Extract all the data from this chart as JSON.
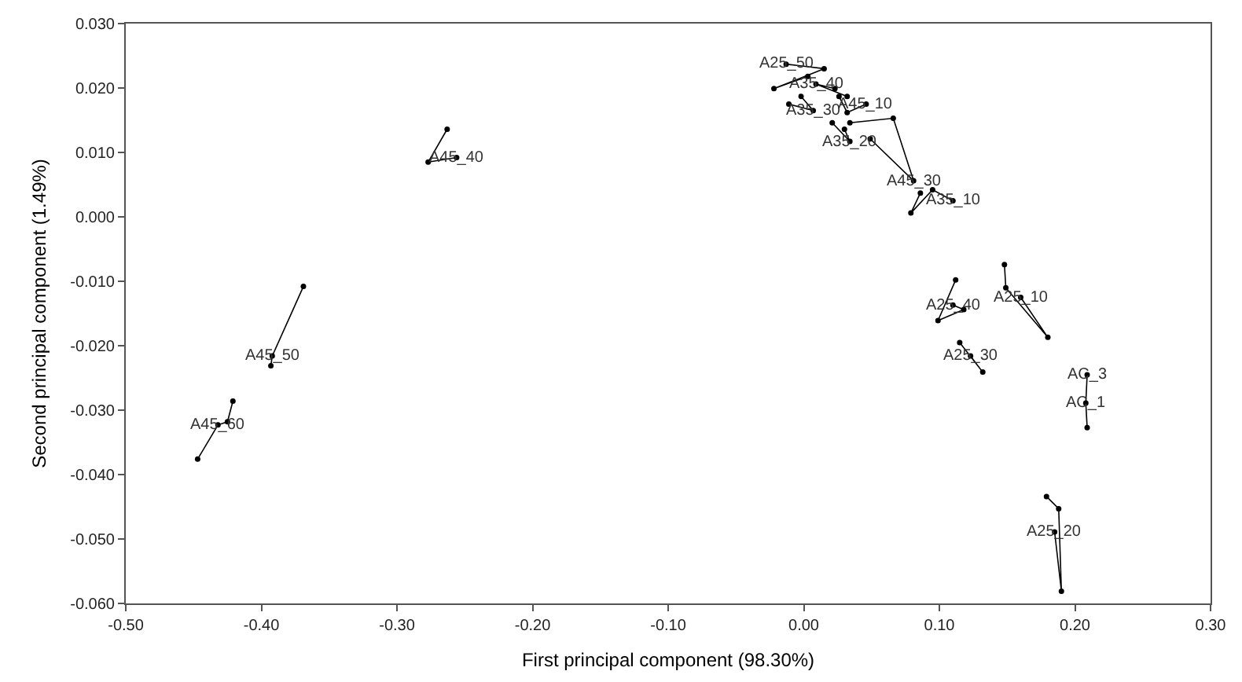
{
  "chart_data": {
    "type": "scatter",
    "xlabel": "First principal component (98.30%)",
    "ylabel": "Second principal component (1.49%)",
    "xlim": [
      -0.5,
      0.3
    ],
    "xticks": [
      {
        "value": -0.5,
        "label": "-0.50"
      },
      {
        "value": -0.4,
        "label": "-0.40"
      },
      {
        "value": -0.3,
        "label": "-0.30"
      },
      {
        "value": -0.2,
        "label": "-0.20"
      },
      {
        "value": -0.1,
        "label": "-0.10"
      },
      {
        "value": 0,
        "label": "0.00"
      },
      {
        "value": 0.1,
        "label": "0.10"
      },
      {
        "value": 0.2,
        "label": "0.20"
      },
      {
        "value": 0.3,
        "label": "0.30"
      }
    ],
    "ylim": [
      -0.06,
      0.03
    ],
    "yticks": [
      {
        "value": 0.03,
        "label": "0.030"
      },
      {
        "value": 0.02,
        "label": "0.020"
      },
      {
        "value": 0.01,
        "label": "0.010"
      },
      {
        "value": 0,
        "label": "0.000"
      },
      {
        "value": -0.01,
        "label": "-0.010"
      },
      {
        "value": -0.02,
        "label": "-0.020"
      },
      {
        "value": -0.03,
        "label": "-0.030"
      },
      {
        "value": -0.04,
        "label": "-0.040"
      },
      {
        "value": -0.05,
        "label": "-0.050"
      },
      {
        "value": -0.06,
        "label": "-0.060"
      }
    ],
    "grid": false,
    "marker": "circle",
    "line_style": "solid",
    "series": [
      {
        "color": "#000000",
        "x": [
          -0.421,
          -0.425,
          -0.432,
          -0.447
        ],
        "values": [
          -0.0286,
          -0.0318,
          -0.0323,
          -0.0376
        ]
      },
      {
        "color": "#000000",
        "x": [
          -0.369,
          -0.392,
          -0.393
        ],
        "values": [
          -0.0108,
          -0.0216,
          -0.0231
        ]
      },
      {
        "color": "#000000",
        "x": [
          -0.263,
          -0.277,
          -0.256
        ],
        "values": [
          0.0136,
          0.0085,
          0.0092
        ]
      },
      {
        "color": "#000000",
        "x": [
          0.112,
          0.099,
          0.118,
          0.11
        ],
        "values": [
          -0.0098,
          -0.0161,
          -0.0144,
          -0.0137
        ]
      },
      {
        "color": "#000000",
        "x": [
          0.148,
          0.149,
          0.18,
          0.16
        ],
        "values": [
          -0.0074,
          -0.011,
          -0.0187,
          -0.0125
        ]
      },
      {
        "color": "#000000",
        "x": [
          0.115,
          0.132,
          0.123
        ],
        "values": [
          -0.0195,
          -0.0241,
          -0.0216
        ]
      },
      {
        "color": "#000000",
        "x": [
          0.209,
          0.208,
          0.209
        ],
        "values": [
          -0.0245,
          -0.0289,
          -0.0327
        ]
      },
      {
        "color": "#000000",
        "x": [
          0.179,
          0.188,
          0.19,
          0.185
        ],
        "values": [
          -0.0434,
          -0.0453,
          -0.0581,
          -0.0489
        ]
      },
      {
        "color": "#000000",
        "x": [
          -0.013,
          0.015,
          -0.022,
          0.003
        ],
        "values": [
          0.0237,
          0.023,
          0.0199,
          0.0218
        ]
      },
      {
        "color": "#000000",
        "x": [
          0.023,
          0.009,
          0.032
        ],
        "values": [
          0.0199,
          0.0206,
          0.0187
        ]
      },
      {
        "color": "#000000",
        "x": [
          -0.011,
          0.007,
          -0.002
        ],
        "values": [
          0.0175,
          0.0165,
          0.0187
        ]
      },
      {
        "color": "#000000",
        "x": [
          0.046,
          0.032,
          0.026
        ],
        "values": [
          0.0175,
          0.0162,
          0.0187
        ]
      },
      {
        "color": "#000000",
        "x": [
          0.03,
          0.034,
          0.021
        ],
        "values": [
          0.0136,
          0.0117,
          0.0146
        ]
      },
      {
        "color": "#000000",
        "x": [
          0.034,
          0.066,
          0.081,
          0.049
        ],
        "values": [
          0.0146,
          0.0153,
          0.0056,
          0.0121
        ]
      },
      {
        "color": "#000000",
        "x": [
          0.086,
          0.079,
          0.095,
          0.11
        ],
        "values": [
          0.0037,
          0.0006,
          0.0042,
          0.0025
        ]
      }
    ],
    "annotations": [
      {
        "text": "A45_60",
        "x": -0.432,
        "y": -0.0323
      },
      {
        "text": "A45_50",
        "x": -0.392,
        "y": -0.0216
      },
      {
        "text": "A45_40",
        "x": -0.256,
        "y": 0.0092
      },
      {
        "text": "A25_40",
        "x": 0.11,
        "y": -0.0137
      },
      {
        "text": "A25_10",
        "x": 0.16,
        "y": -0.0125
      },
      {
        "text": "A25_30",
        "x": 0.123,
        "y": -0.0216
      },
      {
        "text": "AC_3",
        "x": 0.209,
        "y": -0.0245
      },
      {
        "text": "AC_1",
        "x": 0.208,
        "y": -0.0289
      },
      {
        "text": "A25_20",
        "x": 0.185,
        "y": -0.0489
      },
      {
        "text": "A25_50",
        "x": -0.013,
        "y": 0.0237
      },
      {
        "text": "A35_40",
        "x": 0.009,
        "y": 0.0206
      },
      {
        "text": "A35_30",
        "x": 0.007,
        "y": 0.0165
      },
      {
        "text": "A45_10",
        "x": 0.046,
        "y": 0.0175
      },
      {
        "text": "A35_20",
        "x": 0.034,
        "y": 0.0117
      },
      {
        "text": "A45_30",
        "x": 0.081,
        "y": 0.0056
      },
      {
        "text": "A35_10",
        "x": 0.11,
        "y": 0.0025
      }
    ]
  }
}
